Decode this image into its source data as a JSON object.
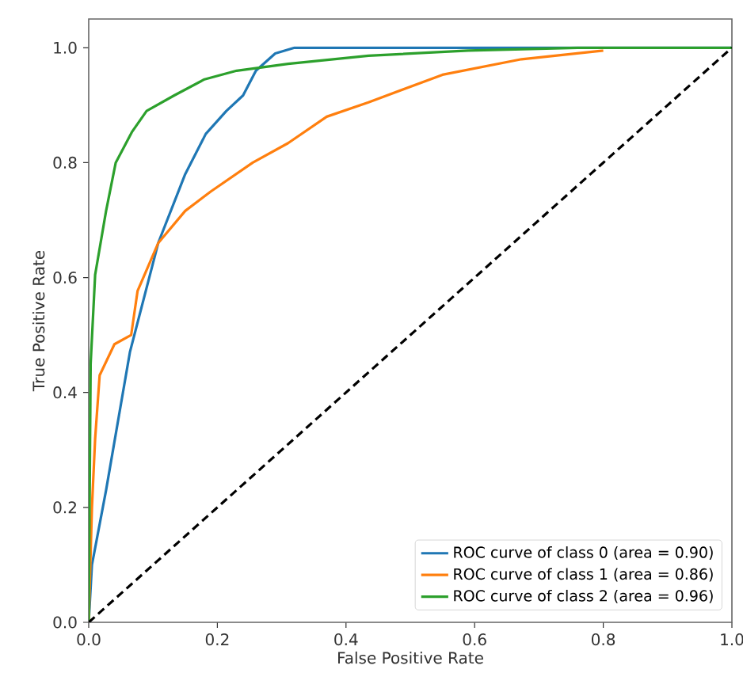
{
  "chart_data": {
    "type": "line",
    "xlabel": "False Positive Rate",
    "ylabel": "True Positive Rate",
    "xlim": [
      0,
      1.0
    ],
    "ylim": [
      0,
      1.05
    ],
    "xticks": [
      {
        "value": 0,
        "label": "0.0"
      },
      0.2,
      0.4,
      0.6,
      0.8,
      {
        "value": 1,
        "label": "1.0"
      }
    ],
    "yticks": [
      {
        "value": 0,
        "label": "0.0"
      },
      0.2,
      0.4,
      0.6,
      0.8,
      {
        "value": 1,
        "label": "1.0"
      }
    ],
    "legend": "bottom right",
    "grid": false,
    "marker": "none",
    "series": [
      {
        "name": "ROC curve of class 0 (area = 0.90)",
        "color": "#1f77b4",
        "x": [
          0,
          0.005,
          0.027,
          0.064,
          0.108,
          0.15,
          0.182,
          0.214,
          0.24,
          0.26,
          0.29,
          0.32,
          1.0
        ],
        "values": [
          0,
          0.1,
          0.23,
          0.47,
          0.66,
          0.78,
          0.85,
          0.89,
          0.917,
          0.96,
          0.99,
          1.0,
          1.0
        ]
      },
      {
        "name": "ROC curve of class 1 (area = 0.86)",
        "color": "#ff7f0e",
        "x": [
          0,
          0.005,
          0.01,
          0.017,
          0.04,
          0.066,
          0.076,
          0.108,
          0.15,
          0.19,
          0.255,
          0.31,
          0.37,
          0.435,
          0.55,
          0.673,
          0.8
        ],
        "values": [
          0,
          0.2,
          0.32,
          0.43,
          0.484,
          0.5,
          0.577,
          0.66,
          0.716,
          0.75,
          0.8,
          0.834,
          0.88,
          0.905,
          0.953,
          0.98,
          0.995
        ]
      },
      {
        "name": "ROC curve of class 2 (area = 0.96)",
        "color": "#2ca02c",
        "x": [
          0,
          0.003,
          0.01,
          0.027,
          0.042,
          0.067,
          0.09,
          0.133,
          0.18,
          0.23,
          0.31,
          0.435,
          0.59,
          0.76,
          1.0
        ],
        "values": [
          0,
          0.45,
          0.605,
          0.716,
          0.8,
          0.853,
          0.89,
          0.917,
          0.945,
          0.96,
          0.972,
          0.986,
          0.995,
          1.0,
          1.0
        ]
      },
      {
        "color": "#000000",
        "line_style": "dashed",
        "x": [
          0,
          1.0
        ],
        "values": [
          0,
          1.0
        ]
      }
    ]
  }
}
